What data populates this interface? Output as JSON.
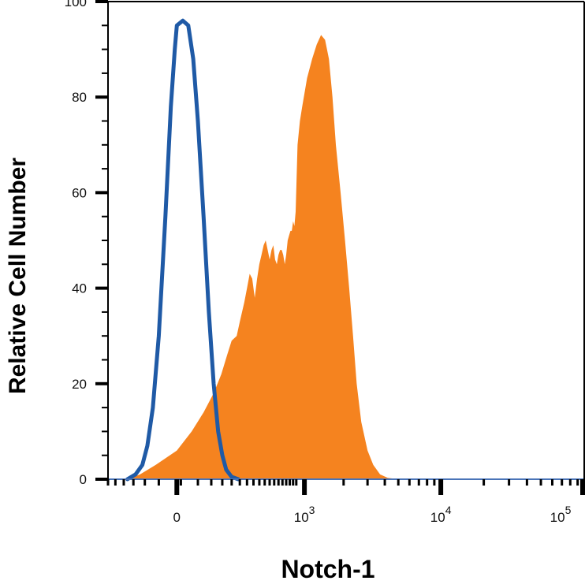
{
  "chart_data": {
    "type": "area",
    "xlabel": "Notch-1",
    "ylabel": "Relative Cell Number",
    "x_scale": "biexponential",
    "x_tick_labels": [
      {
        "base": "0",
        "exp": ""
      },
      {
        "base": "10",
        "exp": "3"
      },
      {
        "base": "10",
        "exp": "4"
      },
      {
        "base": "10",
        "exp": "5"
      }
    ],
    "ylim": [
      0,
      100
    ],
    "y_ticks": [
      0,
      20,
      40,
      60,
      80,
      100
    ],
    "grid": false,
    "legend": "none",
    "series": [
      {
        "style": "filled",
        "color": "#F5831F",
        "points": [
          [
            -180,
            0
          ],
          [
            -120,
            1
          ],
          [
            -60,
            3
          ],
          [
            0,
            6
          ],
          [
            40,
            10
          ],
          [
            80,
            14
          ],
          [
            120,
            18
          ],
          [
            155,
            22
          ],
          [
            185,
            26
          ],
          [
            210,
            29
          ],
          [
            240,
            30
          ],
          [
            260,
            33
          ],
          [
            290,
            37
          ],
          [
            310,
            40
          ],
          [
            330,
            43
          ],
          [
            350,
            42
          ],
          [
            370,
            38
          ],
          [
            390,
            42
          ],
          [
            410,
            45
          ],
          [
            430,
            47
          ],
          [
            450,
            49
          ],
          [
            470,
            50
          ],
          [
            490,
            48
          ],
          [
            510,
            46
          ],
          [
            530,
            48
          ],
          [
            550,
            49
          ],
          [
            570,
            46
          ],
          [
            590,
            45
          ],
          [
            610,
            47
          ],
          [
            630,
            48
          ],
          [
            650,
            48
          ],
          [
            670,
            47
          ],
          [
            690,
            45
          ],
          [
            710,
            47
          ],
          [
            730,
            50
          ],
          [
            750,
            51
          ],
          [
            770,
            52
          ],
          [
            790,
            52
          ],
          [
            810,
            54
          ],
          [
            830,
            53
          ],
          [
            850,
            56
          ],
          [
            880,
            70
          ],
          [
            920,
            75
          ],
          [
            960,
            78
          ],
          [
            1050,
            84
          ],
          [
            1150,
            88
          ],
          [
            1250,
            91
          ],
          [
            1350,
            93
          ],
          [
            1450,
            92
          ],
          [
            1550,
            88
          ],
          [
            1650,
            80
          ],
          [
            1750,
            70
          ],
          [
            1900,
            60
          ],
          [
            2050,
            50
          ],
          [
            2200,
            40
          ],
          [
            2350,
            30
          ],
          [
            2500,
            20
          ],
          [
            2700,
            12
          ],
          [
            3000,
            6
          ],
          [
            3300,
            3
          ],
          [
            3700,
            1
          ],
          [
            4200,
            0.3
          ],
          [
            5000,
            0
          ]
        ]
      },
      {
        "style": "line",
        "color": "#1F5AA6",
        "points": [
          [
            -180,
            0
          ],
          [
            -140,
            1
          ],
          [
            -110,
            3
          ],
          [
            -90,
            7
          ],
          [
            -70,
            15
          ],
          [
            -50,
            30
          ],
          [
            -30,
            55
          ],
          [
            -15,
            78
          ],
          [
            -5,
            90
          ],
          [
            0,
            95
          ],
          [
            15,
            96
          ],
          [
            30,
            95
          ],
          [
            45,
            88
          ],
          [
            60,
            75
          ],
          [
            80,
            55
          ],
          [
            100,
            35
          ],
          [
            120,
            20
          ],
          [
            140,
            10
          ],
          [
            160,
            5
          ],
          [
            180,
            2
          ],
          [
            210,
            0.5
          ],
          [
            250,
            0
          ]
        ]
      }
    ]
  }
}
